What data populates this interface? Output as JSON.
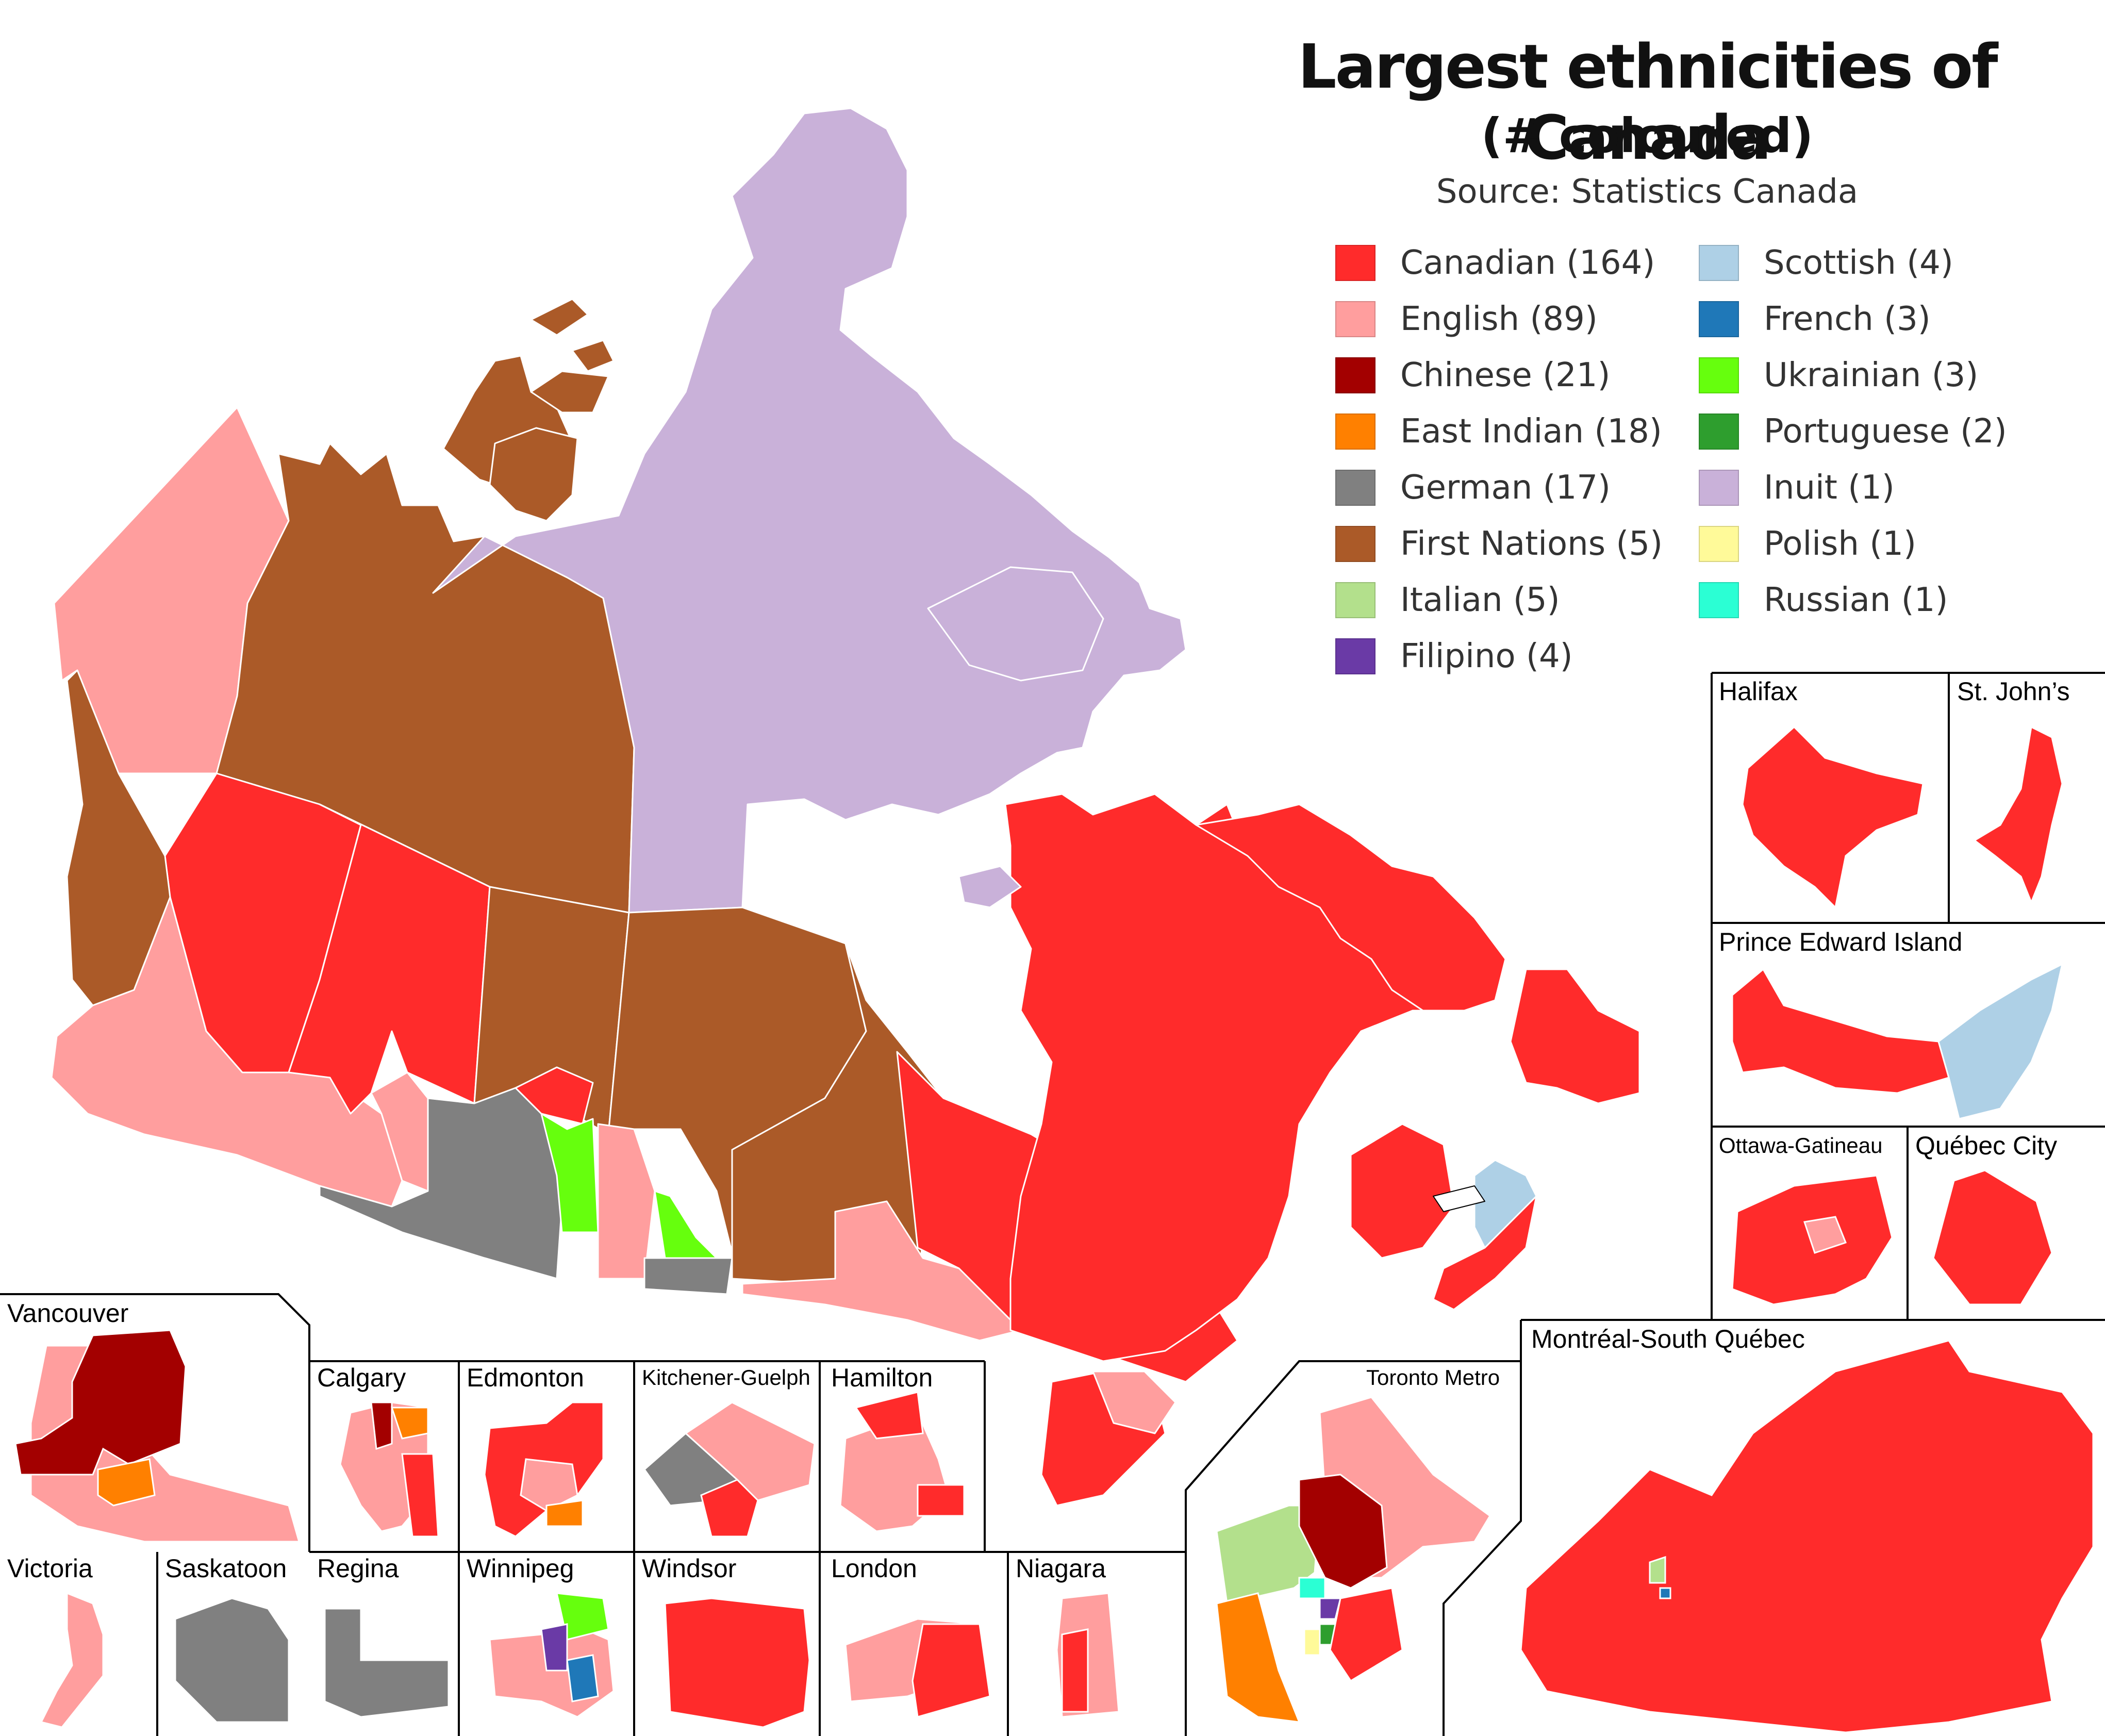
{
  "title": "Largest ethnicities of Canada",
  "subtitle": "(# coloured)",
  "source": "Source: Statistics Canada",
  "legend": [
    {
      "label": "Canadian (164)",
      "color": "#ff2b2b"
    },
    {
      "label": "English (89)",
      "color": "#ff9e9e"
    },
    {
      "label": "Chinese (21)",
      "color": "#a30000"
    },
    {
      "label": "East Indian (18)",
      "color": "#ff8000"
    },
    {
      "label": "German (17)",
      "color": "#808080"
    },
    {
      "label": "First Nations (5)",
      "color": "#ab5a28"
    },
    {
      "label": "Italian (5)",
      "color": "#b3e08c"
    },
    {
      "label": "Filipino (4)",
      "color": "#6a3aa6"
    },
    {
      "label": "Scottish (4)",
      "color": "#aed0e6"
    },
    {
      "label": "French (3)",
      "color": "#1f78b8"
    },
    {
      "label": "Ukrainian (3)",
      "color": "#66ff0d"
    },
    {
      "label": "Portuguese (2)",
      "color": "#2e9e2e"
    },
    {
      "label": "Inuit (1)",
      "color": "#c9b1d9"
    },
    {
      "label": "Polish (1)",
      "color": "#fffa99"
    },
    {
      "label": "Russian (1)",
      "color": "#2bffd4"
    }
  ],
  "insets": {
    "vancouver": "Vancouver",
    "calgary": "Calgary",
    "edmonton": "Edmonton",
    "kitchener": "Kitchener-Guelph",
    "hamilton": "Hamilton",
    "toronto": "Toronto Metro",
    "montreal": "Montréal-South Québec",
    "halifax": "Halifax",
    "stjohns": "St. John’s",
    "pei": "Prince Edward Island",
    "ottawa": "Ottawa-Gatineau",
    "quebec": "Québec City",
    "victoria": "Victoria",
    "saskatoon": "Saskatoon",
    "regina": "Regina",
    "winnipeg": "Winnipeg",
    "windsor": "Windsor",
    "london": "London",
    "niagara": "Niagara"
  }
}
